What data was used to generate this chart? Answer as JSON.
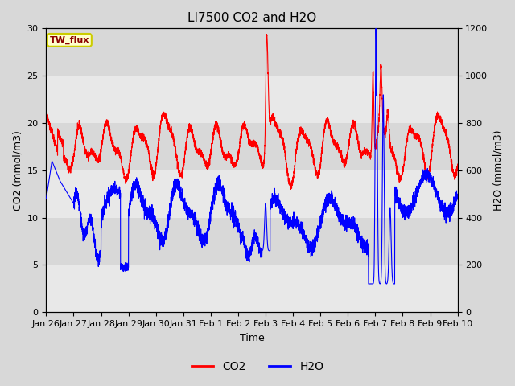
{
  "title": "LI7500 CO2 and H2O",
  "xlabel": "Time",
  "ylabel_left": "CO2 (mmol/m3)",
  "ylabel_right": "H2O (mmol/m3)",
  "ylim_left": [
    0,
    30
  ],
  "ylim_right": [
    0,
    1200
  ],
  "xlim": [
    0,
    360
  ],
  "xtick_labels": [
    "Jan 26",
    "Jan 27",
    "Jan 28",
    "Jan 29",
    "Jan 30",
    "Jan 31",
    "Feb 1",
    "Feb 2",
    "Feb 3",
    "Feb 4",
    "Feb 5",
    "Feb 6",
    "Feb 7",
    "Feb 8",
    "Feb 9",
    "Feb 10"
  ],
  "xtick_positions": [
    0,
    24,
    48,
    72,
    96,
    120,
    144,
    168,
    192,
    216,
    240,
    264,
    288,
    312,
    336,
    360
  ],
  "legend_label": "TW_flux",
  "legend_entries": [
    "CO2",
    "H2O"
  ],
  "bg_color": "#d8d8d8",
  "band_colors": [
    "#e8e8e8",
    "#d8d8d8"
  ],
  "title_fontsize": 11,
  "axis_label_fontsize": 9,
  "tick_fontsize": 8
}
